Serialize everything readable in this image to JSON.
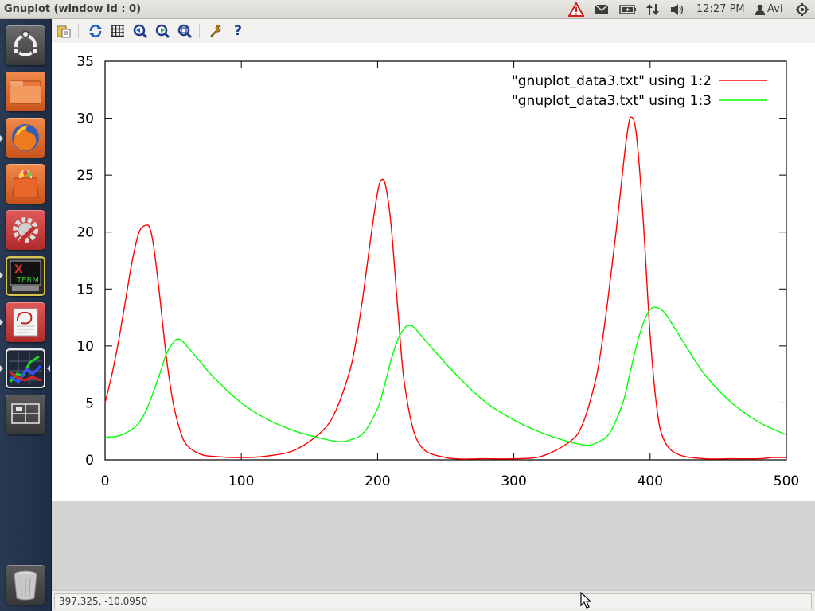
{
  "window": {
    "title": "Gnuplot (window id : 0)"
  },
  "panel": {
    "clock": "12:27 PM",
    "user": "Avi",
    "indicators": [
      "warning-icon",
      "mail-icon",
      "battery-icon",
      "network-icon",
      "volume-icon",
      "user-icon",
      "power-icon"
    ]
  },
  "launcher": {
    "items": [
      "ubuntu-dash",
      "files",
      "firefox",
      "software-center",
      "system-settings",
      "xterm",
      "text-editor",
      "gnuplot",
      "workspace-switcher",
      "trash"
    ],
    "xterm_label_top": "X",
    "xterm_label_bottom": "TERM"
  },
  "toolbar": {
    "buttons": [
      "copy-to-clipboard",
      "replot",
      "toggle-grid",
      "previous-zoom",
      "next-zoom",
      "autoscale",
      "preferences",
      "help"
    ],
    "help_glyph": "?"
  },
  "status": {
    "coordinates": "397.325, -10.0950"
  },
  "colors": {
    "series1": "#ff0000",
    "series2": "#00ff00",
    "axis": "#000000"
  },
  "chart_data": {
    "type": "line",
    "title": "",
    "xlabel": "",
    "ylabel": "",
    "xlim": [
      0,
      500
    ],
    "ylim": [
      0,
      35
    ],
    "xticks": [
      "0",
      "100",
      "200",
      "300",
      "400",
      "500"
    ],
    "yticks": [
      "0",
      "5",
      "10",
      "15",
      "20",
      "25",
      "30",
      "35"
    ],
    "grid": false,
    "legend": "top-right",
    "series": [
      {
        "name": "\"gnuplot_data3.txt\" using 1:2",
        "color": "#ff0000",
        "x": [
          0,
          5,
          10,
          15,
          20,
          25,
          30,
          33,
          36,
          40,
          45,
          50,
          55,
          60,
          70,
          80,
          100,
          120,
          140,
          160,
          170,
          180,
          185,
          190,
          195,
          200,
          203,
          206,
          210,
          215,
          220,
          230,
          250,
          280,
          300,
          320,
          340,
          350,
          360,
          365,
          370,
          375,
          380,
          383,
          386,
          390,
          395,
          400,
          405,
          410,
          420,
          440,
          460,
          480,
          490,
          500
        ],
        "y": [
          5,
          7.5,
          10.5,
          14,
          17.5,
          20,
          20.6,
          20.3,
          18.5,
          14.5,
          9,
          5,
          2.6,
          1.3,
          0.5,
          0.3,
          0.2,
          0.35,
          0.9,
          2.6,
          4.5,
          8,
          11,
          15,
          19.5,
          23.5,
          24.6,
          24,
          20.5,
          13,
          6.5,
          1.5,
          0.2,
          0.1,
          0.1,
          0.3,
          1.5,
          3,
          7,
          10.5,
          15,
          20,
          25.5,
          28.5,
          30.1,
          28.5,
          21,
          11,
          4.5,
          1.8,
          0.5,
          0.1,
          0.1,
          0.1,
          0.2,
          0.2
        ]
      },
      {
        "name": "\"gnuplot_data3.txt\" using 1:3",
        "color": "#00ff00",
        "x": [
          0,
          10,
          20,
          25,
          30,
          35,
          40,
          45,
          50,
          53,
          56,
          60,
          70,
          80,
          100,
          120,
          140,
          160,
          172,
          180,
          190,
          200,
          205,
          210,
          215,
          220,
          223,
          226,
          230,
          240,
          260,
          280,
          300,
          320,
          340,
          352,
          355,
          360,
          370,
          380,
          385,
          390,
          395,
          400,
          404,
          408,
          412,
          420,
          440,
          460,
          480,
          500
        ],
        "y": [
          2,
          2.1,
          2.7,
          3.3,
          4.3,
          5.8,
          7.5,
          9.3,
          10.3,
          10.6,
          10.5,
          10,
          8.6,
          7.2,
          5,
          3.5,
          2.5,
          1.85,
          1.6,
          1.75,
          2.4,
          4.5,
          6.5,
          8.8,
          10.6,
          11.6,
          11.8,
          11.7,
          11.2,
          9.8,
          7.2,
          5,
          3.5,
          2.4,
          1.6,
          1.3,
          1.3,
          1.45,
          2.3,
          5,
          7.5,
          10,
          12,
          13.2,
          13.4,
          13.2,
          12.7,
          11.2,
          7.5,
          5,
          3.3,
          2.2
        ]
      }
    ]
  }
}
